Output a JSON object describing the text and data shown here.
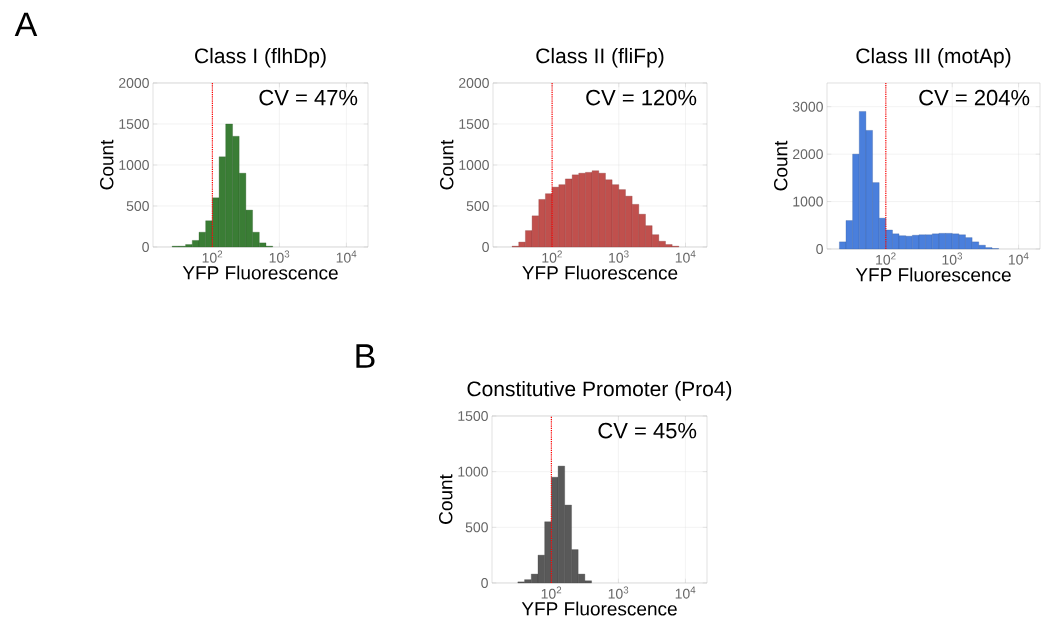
{
  "chart_data": [
    {
      "type": "histogram",
      "title": "Class I (flhDp)",
      "xlabel": "YFP Fluorescence",
      "ylabel": "Count",
      "color": "#3a7d35",
      "log": "x",
      "grid": true,
      "bins": [
        25.1,
        31.6,
        39.8,
        50.1,
        63.1,
        79.4,
        100,
        126,
        158,
        200,
        251,
        316,
        398,
        501,
        631,
        794
      ],
      "values": [
        10,
        10,
        30,
        80,
        180,
        320,
        600,
        1100,
        1500,
        1350,
        900,
        450,
        180,
        50,
        10
      ],
      "xlim": [
        13,
        21000
      ],
      "ylim": [
        0,
        2000
      ],
      "xticks": [
        {
          "value": 100,
          "label": "10$^{2}$"
        },
        {
          "value": 1000,
          "label": "10$^{3}$"
        },
        {
          "value": 10000,
          "label": "10$^{4}$"
        }
      ],
      "yticks": [
        0,
        500,
        1000,
        1500,
        2000
      ],
      "ref_lines": [
        {
          "axis": "x",
          "value": 100,
          "color": "#ff0000",
          "line_style": "dotted"
        }
      ],
      "annotations": [
        "A",
        "CV = 47%"
      ]
    },
    {
      "type": "histogram",
      "title": "Class II (fliFp)",
      "xlabel": "YFP Fluorescence",
      "ylabel": "Count",
      "color": "#c0504d",
      "log": "x",
      "grid": true,
      "bins": [
        25.1,
        31.6,
        39.8,
        50.1,
        63.1,
        79.4,
        100,
        126,
        158,
        200,
        251,
        316,
        398,
        501,
        631,
        794,
        1000,
        1259,
        1585,
        1995,
        2512,
        3162,
        3981,
        5012,
        6310,
        7943
      ],
      "values": [
        10,
        60,
        200,
        380,
        580,
        650,
        730,
        760,
        830,
        880,
        900,
        910,
        930,
        900,
        820,
        760,
        700,
        620,
        520,
        400,
        260,
        150,
        70,
        30,
        10
      ],
      "xlim": [
        13,
        21000
      ],
      "ylim": [
        0,
        2000
      ],
      "xticks": [
        {
          "value": 100,
          "label": "10$^{2}$"
        },
        {
          "value": 1000,
          "label": "10$^{3}$"
        },
        {
          "value": 10000,
          "label": "10$^{4}$"
        }
      ],
      "yticks": [
        0,
        500,
        1000,
        1500,
        2000
      ],
      "ref_lines": [
        {
          "axis": "x",
          "value": 100,
          "color": "#ff0000",
          "line_style": "dotted"
        }
      ],
      "annotations": [
        "CV = 120%"
      ]
    },
    {
      "type": "histogram",
      "title": "Class III (motAp)",
      "xlabel": "YFP Fluorescence",
      "ylabel": "Count",
      "color": "#4a7fdc",
      "log": "x",
      "grid": true,
      "bins": [
        20,
        25.1,
        31.6,
        39.8,
        50.1,
        63.1,
        79.4,
        100,
        126,
        158,
        200,
        251,
        316,
        398,
        501,
        631,
        794,
        1000,
        1259,
        1585,
        1995,
        2512,
        3162,
        3981,
        5012
      ],
      "values": [
        150,
        600,
        2000,
        2900,
        2500,
        1400,
        650,
        400,
        320,
        280,
        270,
        290,
        300,
        300,
        320,
        330,
        330,
        320,
        300,
        240,
        150,
        80,
        30,
        10
      ],
      "xlim": [
        13,
        21000
      ],
      "ylim": [
        0,
        3500
      ],
      "xticks": [
        {
          "value": 100,
          "label": "10$^{2}$"
        },
        {
          "value": 1000,
          "label": "10$^{3}$"
        },
        {
          "value": 10000,
          "label": "10$^{4}$"
        }
      ],
      "yticks": [
        0,
        1000,
        2000,
        3000
      ],
      "ref_lines": [
        {
          "axis": "x",
          "value": 100,
          "color": "#ff0000",
          "line_style": "dotted"
        }
      ],
      "annotations": [
        "CV = 204%"
      ]
    },
    {
      "type": "histogram",
      "title": "Constitutive Promoter (Pro4)",
      "xlabel": "YFP Fluorescence",
      "ylabel": "Count",
      "color": "#595959",
      "log": "x",
      "grid": true,
      "bins": [
        31.6,
        39.8,
        50.1,
        63.1,
        79.4,
        100,
        126,
        158,
        200,
        251,
        316,
        398
      ],
      "values": [
        10,
        30,
        80,
        250,
        550,
        950,
        1050,
        700,
        300,
        80,
        20
      ],
      "xlim": [
        13,
        21000
      ],
      "ylim": [
        0,
        1500
      ],
      "xticks": [
        {
          "value": 100,
          "label": "10$^{2}$"
        },
        {
          "value": 1000,
          "label": "10$^{3}$"
        },
        {
          "value": 10000,
          "label": "10$^{4}$"
        }
      ],
      "yticks": [
        0,
        500,
        1000,
        1500
      ],
      "ref_lines": [
        {
          "axis": "x",
          "value": 100,
          "color": "#ff0000",
          "line_style": "dotted"
        }
      ],
      "annotations": [
        "B",
        "CV = 45%"
      ]
    }
  ]
}
